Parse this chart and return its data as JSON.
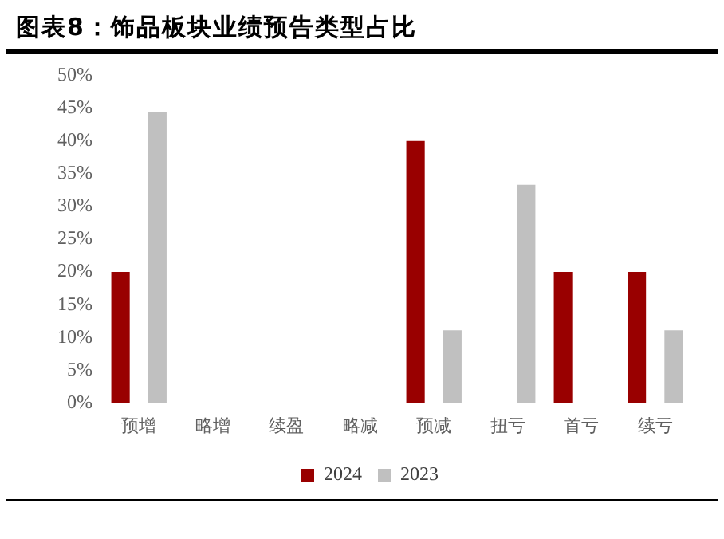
{
  "chart_data": {
    "type": "bar",
    "title": "图表8：饰品板块业绩预告类型占比",
    "categories": [
      "预增",
      "略增",
      "续盈",
      "略减",
      "预减",
      "扭亏",
      "首亏",
      "续亏"
    ],
    "series": [
      {
        "name": "2024",
        "color": "#990000",
        "values": [
          20,
          0,
          0,
          0,
          40,
          0,
          20,
          20
        ]
      },
      {
        "name": "2023",
        "color": "#c0c0c0",
        "values": [
          44.4,
          0,
          0,
          0,
          11.1,
          33.3,
          0,
          11.1
        ]
      }
    ],
    "ylim": [
      0,
      50
    ],
    "yticks": [
      {
        "value": 0,
        "label": "0%"
      },
      {
        "value": 5,
        "label": "5%"
      },
      {
        "value": 10,
        "label": "10%"
      },
      {
        "value": 15,
        "label": "15%"
      },
      {
        "value": 20,
        "label": "20%"
      },
      {
        "value": 25,
        "label": "25%"
      },
      {
        "value": 30,
        "label": "30%"
      },
      {
        "value": 35,
        "label": "35%"
      },
      {
        "value": 40,
        "label": "40%"
      },
      {
        "value": 45,
        "label": "45%"
      },
      {
        "value": 50,
        "label": "50%"
      }
    ],
    "grid": false,
    "legend": "bottom"
  }
}
